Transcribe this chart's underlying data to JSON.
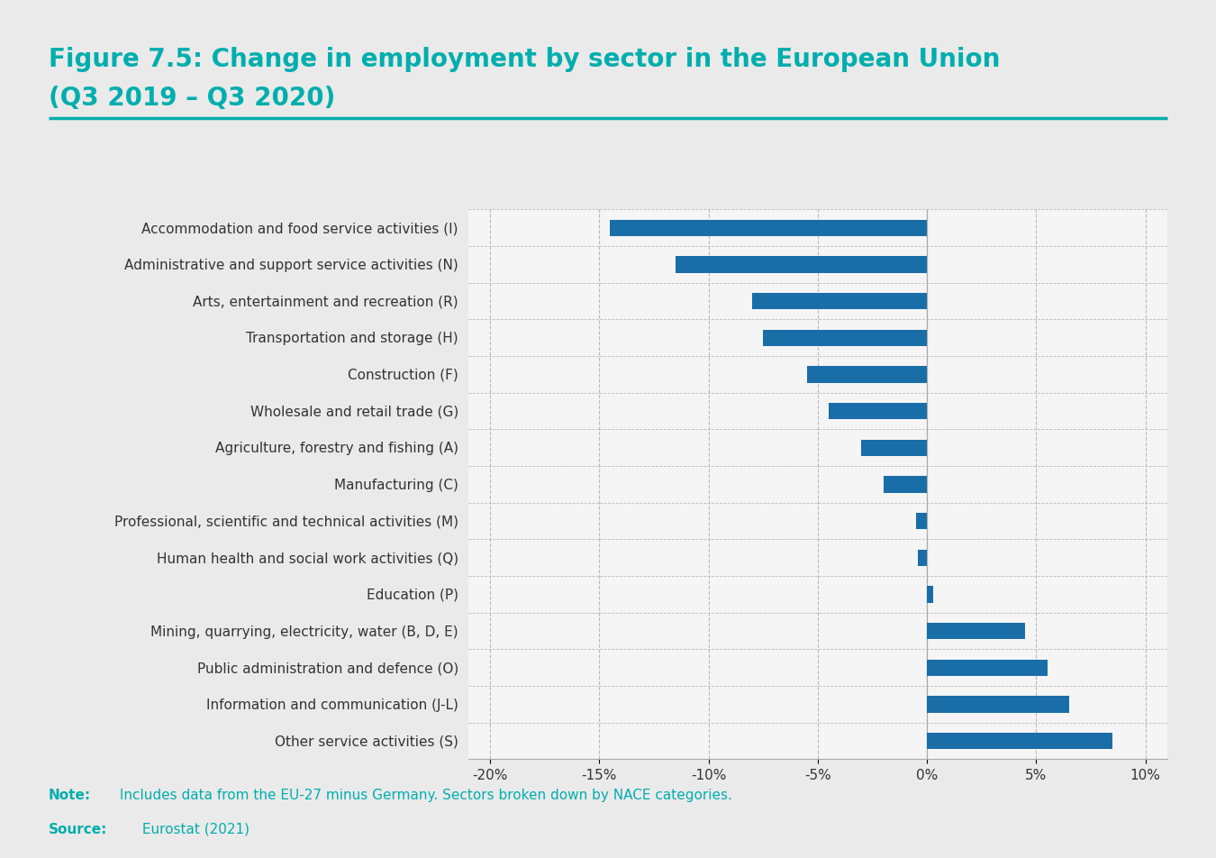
{
  "title_line1": "Figure 7.5: Change in employment by sector in the European Union",
  "title_line2": "(Q3 2019 – Q3 2020)",
  "title_color": "#00AEAD",
  "title_fontsize": 20,
  "bar_color": "#1A6EA8",
  "background_color": "#EAEAEA",
  "plot_bg_color": "#F5F5F5",
  "note_bold": "Note:",
  "note_text": " Includes data from the EU-27 minus Germany. Sectors broken down by NACE categories.",
  "source_bold": "Source:",
  "source_text": " Eurostat (2021)",
  "note_color": "#00AEAD",
  "categories": [
    "Accommodation and food service activities (I)",
    "Administrative and support service activities (N)",
    "Arts, entertainment and recreation (R)",
    "Transportation and storage (H)",
    "Construction (F)",
    "Wholesale and retail trade (G)",
    "Agriculture, forestry and fishing (A)",
    "Manufacturing (C)",
    "Professional, scientific and technical activities (M)",
    "Human health and social work activities (Q)",
    "Education (P)",
    "Mining, quarrying, electricity, water (B, D, E)",
    "Public administration and defence (O)",
    "Information and communication (J-L)",
    "Other service activities (S)"
  ],
  "values": [
    -14.5,
    -11.5,
    -8.0,
    -7.5,
    -5.5,
    -4.5,
    -3.0,
    -2.0,
    -0.5,
    -0.4,
    0.3,
    4.5,
    5.5,
    6.5,
    8.5
  ],
  "xlim": [
    -21,
    11
  ],
  "xticks": [
    -20,
    -15,
    -10,
    -5,
    0,
    5,
    10
  ],
  "xticklabels": [
    "-20%",
    "-15%",
    "-10%",
    "-5%",
    "0%",
    "5%",
    "10%"
  ],
  "separator_color": "#00AEAD",
  "grid_color": "#BBBBBB",
  "label_fontsize": 11,
  "tick_fontsize": 11
}
